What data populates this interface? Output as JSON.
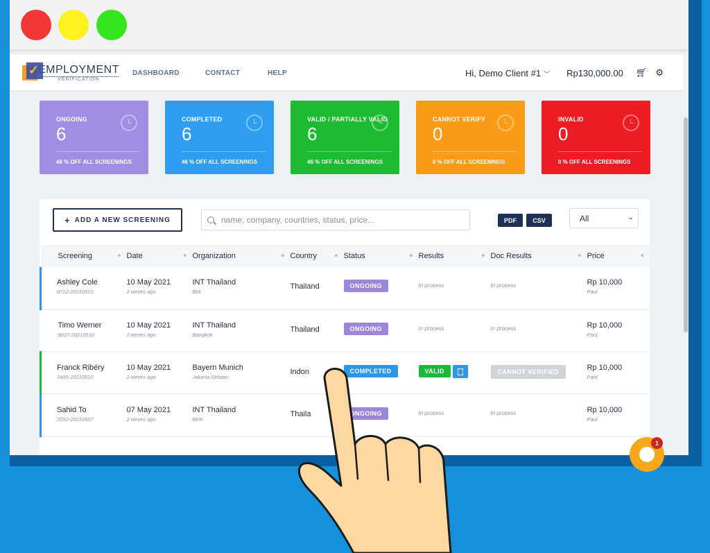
{
  "window": {
    "traffic_lights": [
      "red",
      "yellow",
      "green"
    ]
  },
  "nav": {
    "logo_main": "EMPLOYMENT",
    "logo_sub": "VERIFICATION",
    "links": [
      "DASHBOARD",
      "CONTACT",
      "HELP"
    ],
    "greeting": "Hi, Demo Client #1",
    "balance": "Rp130,000.00",
    "cart_icon": "cart-icon",
    "settings_icon": "gear-icon"
  },
  "cards": [
    {
      "label": "ONGOING",
      "value": "6",
      "footer": "46 % OFF ALL SCREENINGS",
      "color": "#9f8ee4"
    },
    {
      "label": "COMPLETED",
      "value": "6",
      "footer": "46 % OFF ALL SCREENINGS",
      "color": "#2f9ef0"
    },
    {
      "label": "VALID / PARTIALLY VALID",
      "value": "6",
      "footer": "46 % OFF ALL SCREENINGS",
      "color": "#1cbb31"
    },
    {
      "label": "CANNOT VERIFY",
      "value": "0",
      "footer": "0 % OFF ALL SCREENINGS",
      "color": "#fb9b18"
    },
    {
      "label": "INVALID",
      "value": "0",
      "footer": "0 % OFF ALL SCREENINGS",
      "color": "#ee1c25"
    }
  ],
  "toolbar": {
    "add_label": "ADD A NEW SCREENING",
    "search_placeholder": "name, company, countries, status, price...",
    "pdf_label": "PDF",
    "csv_label": "CSV",
    "filter_value": "All"
  },
  "table": {
    "columns": [
      "Screening",
      "Date",
      "Organization",
      "Country",
      "Status",
      "Results",
      "Doc Results",
      "Price"
    ],
    "rows": [
      {
        "name": "Ashley Cole",
        "id": "0722-20210510",
        "date": "10 May 2021",
        "ago": "2 weeks ago",
        "org": "INT Thailand",
        "city": "Bkk",
        "country": "Thailand",
        "status": "ONGOING",
        "results": "In process",
        "doc": "In process",
        "price": "Rp 10,000",
        "paid": "Paid"
      },
      {
        "name": "Timo Werner",
        "id": "9037-20210510",
        "date": "10 May 2021",
        "ago": "2 weeks ago",
        "org": "INT Thailand",
        "city": "Bangkok",
        "country": "Thailand",
        "status": "ONGOING",
        "results": "In process",
        "doc": "In process",
        "price": "Rp 10,000",
        "paid": "Paid"
      },
      {
        "name": "Franck Ribéry",
        "id": "3485-20210510",
        "date": "10 May 2021",
        "ago": "2 weeks ago",
        "org": "Bayern Munich",
        "city": "Jakarta Selatan",
        "country": "Indon",
        "status": "COMPLETED",
        "results": "VALID",
        "doc": "CANNOT VERIFIED",
        "price": "Rp 10,000",
        "paid": "Paid"
      },
      {
        "name": "Sahid To",
        "id": "7092-20210507",
        "date": "07 May 2021",
        "ago": "2 weeks ago",
        "org": "INT Thailand",
        "city": "BKK",
        "country": "Thaila",
        "status": "ONGOING",
        "results": "In process",
        "doc": "In process",
        "price": "Rp 10,000",
        "paid": "Paid"
      }
    ]
  },
  "chat": {
    "badge": "1"
  }
}
